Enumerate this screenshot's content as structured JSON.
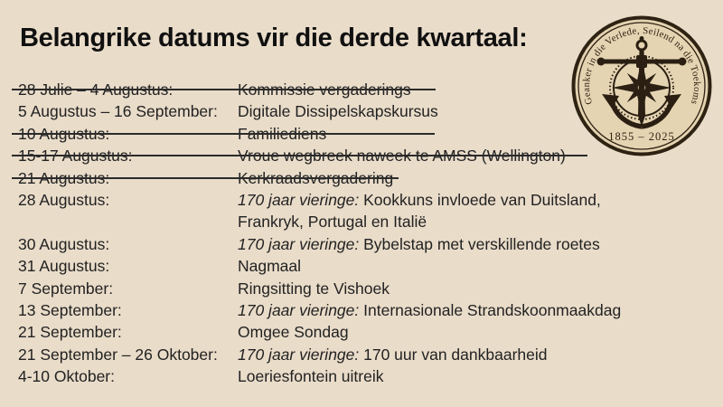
{
  "title": "Belangrike datums vir die derde kwartaal:",
  "colors": {
    "background": "#e9dcc9",
    "body_text": "#222222",
    "title_text": "#101010",
    "strikethrough": "#2b2b2b",
    "logo_ink": "#2e2213",
    "logo_parchment": "#e5d4b2"
  },
  "schedule": {
    "rows": [
      {
        "date": "28 Julie – 4 Augustus:",
        "italic_prefix": "",
        "description": "Kommissie vergaderings",
        "struck": true
      },
      {
        "date": "5 Augustus – 16 September:",
        "italic_prefix": "",
        "description": "Digitale Dissipelskapskursus",
        "struck": false
      },
      {
        "date": "10 Augustus:",
        "italic_prefix": "",
        "description": "Familiediens",
        "struck": true
      },
      {
        "date": "15-17 Augustus:",
        "italic_prefix": "",
        "description": "Vroue wegbreek naweek te AMSS (Wellington)",
        "struck": true
      },
      {
        "date": "21 Augustus:",
        "italic_prefix": "",
        "description": "Kerkraadsvergadering",
        "struck": true
      },
      {
        "date": "28 Augustus:",
        "italic_prefix": "170 jaar vieringe:",
        "description": "Kookkuns invloede van Duitsland,",
        "description_line2": "Frankryk, Portugal en Italië",
        "struck": false
      },
      {
        "date": "30 Augustus:",
        "italic_prefix": "170 jaar vieringe:",
        "description": "Bybelstap met verskillende roetes",
        "struck": false
      },
      {
        "date": "31 Augustus:",
        "italic_prefix": "",
        "description": "Nagmaal",
        "struck": false
      },
      {
        "date": "7 September:",
        "italic_prefix": "",
        "description": "Ringsitting te Vishoek",
        "struck": false
      },
      {
        "date": "13 September:",
        "italic_prefix": "170 jaar vieringe:",
        "description": "Internasionale Strandskoonmaakdag",
        "struck": false
      },
      {
        "date": "21 September:",
        "italic_prefix": "",
        "description": "Omgee Sondag",
        "struck": false
      },
      {
        "date": "21 September – 26 Oktober:",
        "italic_prefix": "170 jaar vieringe:",
        "description": "170 uur van dankbaarheid",
        "struck": false
      },
      {
        "date": "4-10 Oktober:",
        "italic_prefix": "",
        "description": "Loeriesfontein uitreik",
        "struck": false
      }
    ]
  },
  "logo": {
    "arc_text": "Geanker in die Verlede, Seilend na die Toekoms",
    "years": "1855 – 2025",
    "icons": [
      "anchor-icon",
      "compass-rose-icon"
    ]
  }
}
